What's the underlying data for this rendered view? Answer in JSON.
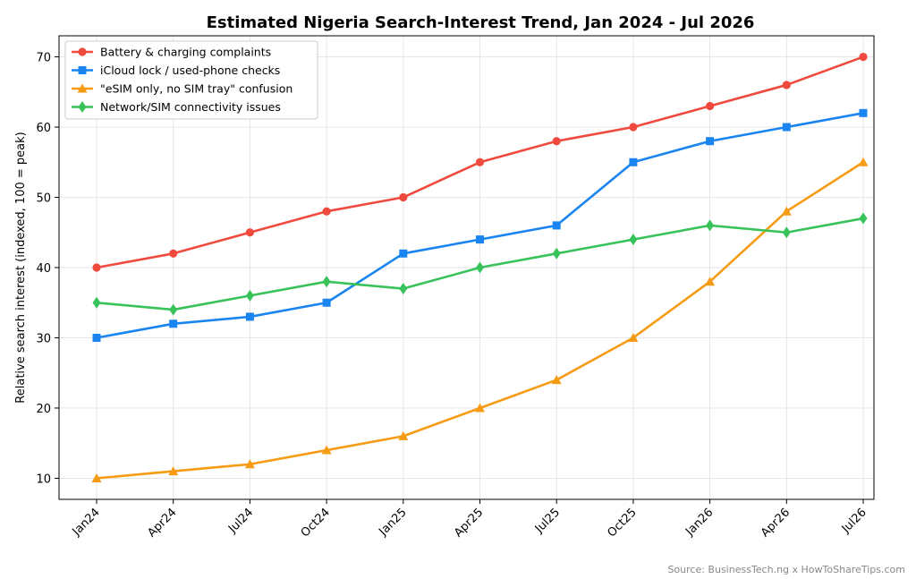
{
  "chart_data": {
    "type": "line",
    "title": "Estimated Nigeria Search-Interest Trend, Jan 2024 - Jul 2026",
    "xlabel": "",
    "ylabel": "Relative search interest (indexed, 100 = peak)",
    "categories": [
      "Jan24",
      "Apr24",
      "Jul24",
      "Oct24",
      "Jan25",
      "Apr25",
      "Jul25",
      "Oct25",
      "Jan26",
      "Apr26",
      "Jul26"
    ],
    "yticks": [
      10,
      20,
      30,
      40,
      50,
      60,
      70
    ],
    "ylim": [
      7,
      73
    ],
    "grid": true,
    "legend_position": "top-left",
    "series": [
      {
        "name": "Battery & charging complaints",
        "color": "#f04a3f",
        "marker": "circle",
        "values": [
          40,
          42,
          45,
          48,
          50,
          55,
          58,
          60,
          63,
          66,
          70
        ]
      },
      {
        "name": "iCloud lock / used-phone checks",
        "color": "#1a85f0",
        "marker": "square",
        "values": [
          30,
          32,
          33,
          35,
          42,
          44,
          46,
          55,
          58,
          60,
          62
        ]
      },
      {
        "name": "\"eSIM only, no SIM tray\" confusion",
        "color": "#f79b15",
        "marker": "triangle",
        "values": [
          10,
          11,
          12,
          14,
          16,
          20,
          24,
          30,
          38,
          48,
          55
        ]
      },
      {
        "name": "Network/SIM connectivity issues",
        "color": "#38c25a",
        "marker": "diamond",
        "values": [
          35,
          34,
          36,
          38,
          37,
          40,
          42,
          44,
          46,
          45,
          47
        ]
      }
    ]
  },
  "source_note": "Source: BusinessTech.ng x HowToShareTips.com"
}
